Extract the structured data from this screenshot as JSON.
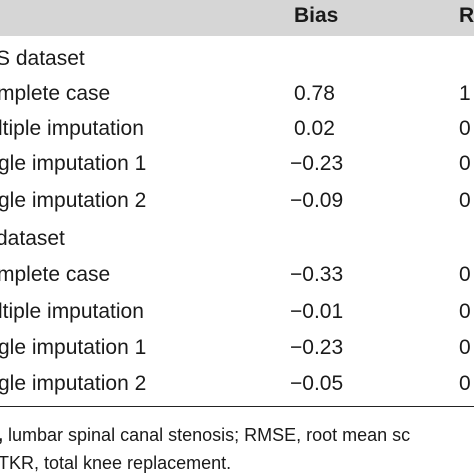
{
  "table": {
    "header": {
      "bias": "Bias",
      "next_col": "R"
    },
    "groups": [
      {
        "label": "S dataset",
        "rows": [
          {
            "method": "mplete case",
            "bias": "0.78",
            "next": "1"
          },
          {
            "method": "ltiple imputation",
            "bias": "0.02",
            "next": "0"
          },
          {
            "method": "gle imputation 1",
            "bias": "−0.23",
            "next": "0"
          },
          {
            "method": "gle imputation 2",
            "bias": "−0.09",
            "next": "0"
          }
        ]
      },
      {
        "label": "dataset",
        "rows": [
          {
            "method": "mplete case",
            "bias": "−0.33",
            "next": "0"
          },
          {
            "method": "ltiple imputation",
            "bias": "−0.01",
            "next": "0"
          },
          {
            "method": "gle imputation 1",
            "bias": "−0.23",
            "next": "0"
          },
          {
            "method": "gle imputation 2",
            "bias": "−0.05",
            "next": "0"
          }
        ]
      }
    ]
  },
  "footnote": {
    "line1_prefix": ",",
    "line1": " lumbar spinal canal stenosis; RMSE, root mean sc",
    "line2": "TKR, total knee replacement."
  }
}
